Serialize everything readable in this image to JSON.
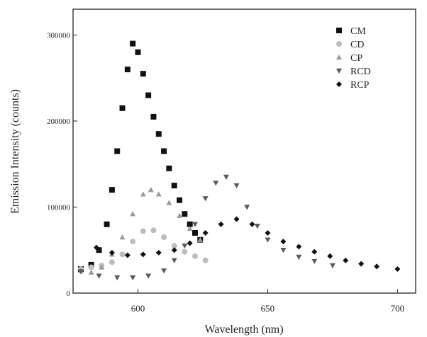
{
  "chart_data": {
    "type": "scatter",
    "xlabel": "Wavelength (nm)",
    "ylabel": "Emission Intensity (counts)",
    "xlim": [
      575,
      707
    ],
    "ylim": [
      0,
      330000
    ],
    "x_ticks": [
      600,
      650,
      700
    ],
    "x_tick_labels": [
      "600",
      "650",
      "700"
    ],
    "y_ticks": [
      0,
      100000,
      200000,
      300000
    ],
    "y_tick_labels": [
      "0",
      "100000",
      "200000",
      "300000"
    ],
    "grid": false,
    "legend_position": "top-right",
    "series": [
      {
        "name": "CM",
        "marker": "square",
        "color": "#111111",
        "x": [
          578,
          582,
          585,
          588,
          590,
          592,
          594,
          596,
          598,
          600,
          602,
          604,
          606,
          608,
          610,
          612,
          614,
          616,
          618,
          620,
          622,
          624
        ],
        "y": [
          28000,
          33000,
          50000,
          80000,
          120000,
          165000,
          215000,
          260000,
          290000,
          280000,
          255000,
          230000,
          205000,
          185000,
          165000,
          145000,
          125000,
          108000,
          92000,
          80000,
          70000,
          62000
        ]
      },
      {
        "name": "CD",
        "marker": "circle",
        "color": "#bdbdbd",
        "x": [
          578,
          582,
          586,
          590,
          594,
          598,
          602,
          606,
          610,
          614,
          618,
          622,
          626
        ],
        "y": [
          28000,
          30000,
          32000,
          36000,
          45000,
          60000,
          72000,
          73000,
          65000,
          55000,
          48000,
          43000,
          38000
        ]
      },
      {
        "name": "CP",
        "marker": "triangle-up",
        "color": "#9a9a9a",
        "x": [
          578,
          582,
          586,
          590,
          594,
          598,
          602,
          605,
          608,
          612,
          616,
          620,
          624
        ],
        "y": [
          26000,
          24000,
          30000,
          45000,
          65000,
          92000,
          115000,
          120000,
          115000,
          105000,
          90000,
          75000,
          62000
        ]
      },
      {
        "name": "RCD",
        "marker": "triangle-down",
        "color": "#5a5a5a",
        "x": [
          578,
          585,
          592,
          598,
          604,
          610,
          614,
          618,
          622,
          626,
          630,
          634,
          638,
          642,
          646,
          650,
          656,
          662,
          668,
          675
        ],
        "y": [
          25000,
          20000,
          18000,
          18000,
          20000,
          26000,
          38000,
          55000,
          80000,
          110000,
          128000,
          135000,
          125000,
          100000,
          78000,
          62000,
          50000,
          42000,
          37000,
          32000
        ]
      },
      {
        "name": "RCP",
        "marker": "diamond",
        "color": "#111111",
        "x": [
          584,
          590,
          596,
          602,
          608,
          614,
          620,
          626,
          632,
          638,
          644,
          650,
          656,
          662,
          668,
          674,
          680,
          686,
          692,
          700
        ],
        "y": [
          53000,
          47000,
          44000,
          45000,
          47000,
          50000,
          58000,
          70000,
          80000,
          86000,
          80000,
          70000,
          60000,
          54000,
          48000,
          43000,
          38000,
          34000,
          31000,
          28000
        ]
      }
    ]
  }
}
